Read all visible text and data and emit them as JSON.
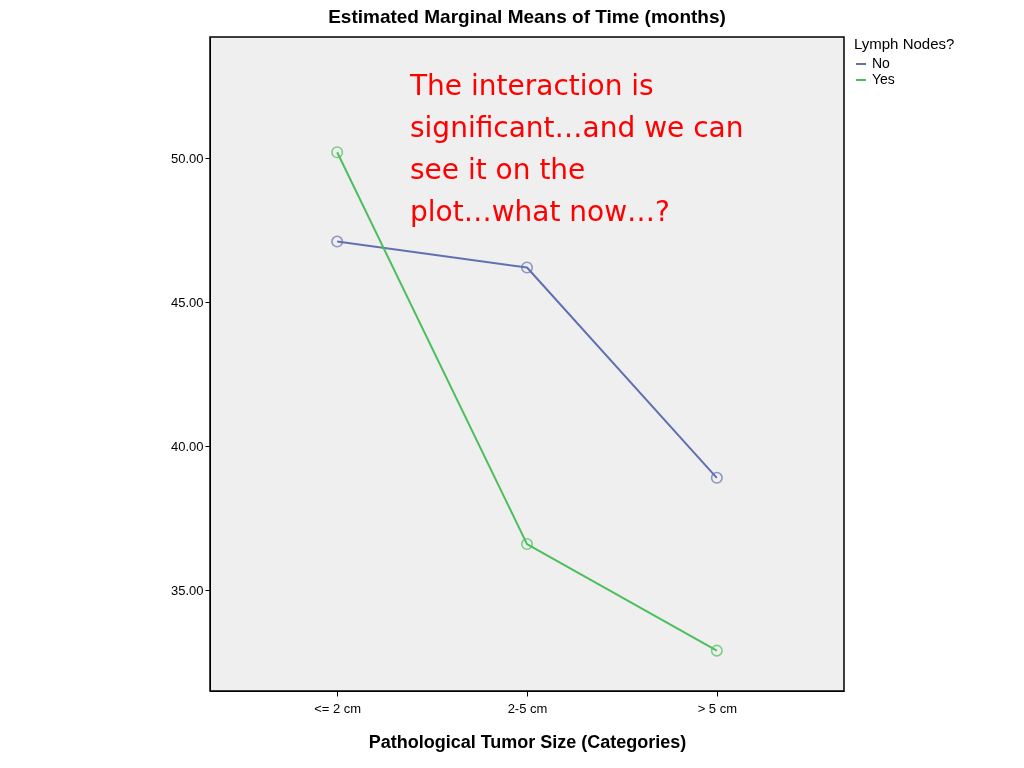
{
  "chart_data": {
    "type": "line",
    "title": "Estimated Marginal Means of Time (months)",
    "xlabel": "Pathological Tumor Size (Categories)",
    "categories": [
      "<= 2 cm",
      "2-5 cm",
      "> 5 cm"
    ],
    "series": [
      {
        "name": "No",
        "color": "#6171b0",
        "values": [
          47.1,
          46.2,
          38.9
        ]
      },
      {
        "name": "Yes",
        "color": "#4cbf5c",
        "values": [
          50.2,
          36.6,
          32.9
        ]
      }
    ],
    "ylim": [
      31.5,
      54.2
    ],
    "yticks": [
      {
        "value": 35,
        "label": "35.00"
      },
      {
        "value": 40,
        "label": "40.00"
      },
      {
        "value": 45,
        "label": "45.00"
      },
      {
        "value": 50,
        "label": "50.00"
      }
    ],
    "legend_title": "Lymph Nodes?",
    "legend": "top right",
    "marker": "circle",
    "line_style": "solid",
    "grid": false,
    "annotations": [
      "The interaction is significant…and we can see it on the plot…what now…?"
    ]
  }
}
